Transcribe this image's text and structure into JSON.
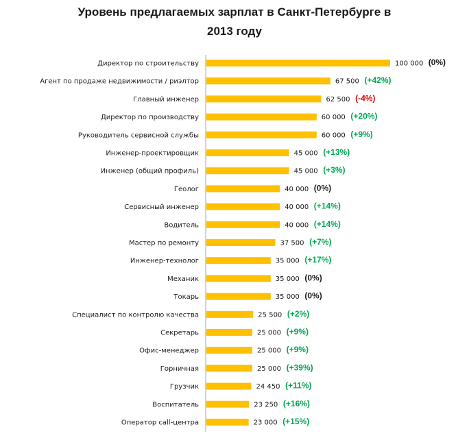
{
  "chart_data": {
    "type": "bar",
    "orientation": "horizontal",
    "title": [
      "Уровень предлагаемых зарплат в Санкт-Петербурге  в",
      "2013 году"
    ],
    "xlabel": "",
    "ylabel": "",
    "xlim": [
      0,
      100000
    ],
    "grid": false,
    "legend": "none",
    "colors": {
      "bar": "#FFC000",
      "axis": "#A6A6A6",
      "positive": "#00A651",
      "negative": "#E00000",
      "neutral": "#1a1a1a"
    },
    "categories": [
      "Директор по строительству",
      "Агент по продаже недвижимости / риэлтор",
      "Главный инженер",
      "Директор по производству",
      "Руководитель сервисной службы",
      "Инженер-проектировщик",
      "Инженер (общий профиль)",
      "Геолог",
      "Сервисный инженер",
      "Водитель",
      "Мастер по ремонту",
      "Инженер-технолог",
      "Механик",
      "Токарь",
      "Специалист по контролю качества",
      "Секретарь",
      "Офис-менеджер",
      "Горничная",
      "Грузчик",
      "Воспитатель",
      "Оператор call-центра"
    ],
    "values": [
      100000,
      67500,
      62500,
      60000,
      60000,
      45000,
      45000,
      40000,
      40000,
      40000,
      37500,
      35000,
      35000,
      35000,
      25500,
      25000,
      25000,
      25000,
      24450,
      23250,
      23000
    ],
    "value_labels": [
      "100 000",
      "67 500",
      "62 500",
      "60 000",
      "60 000",
      "45 000",
      "45 000",
      "40 000",
      "40 000",
      "40 000",
      "37 500",
      "35 000",
      "35 000",
      "35 000",
      "25 500",
      "25 000",
      "25 000",
      "25 000",
      "24 450",
      "23 250",
      "23 000"
    ],
    "changes": [
      "(0%)",
      "(+42%)",
      "(-4%)",
      "(+20%)",
      "(+9%)",
      "(+13%)",
      "(+3%)",
      "(0%)",
      "(+14%)",
      "(+14%)",
      "(+7%)",
      "(+17%)",
      "(0%)",
      "(0%)",
      "(+2%)",
      "(+9%)",
      "(+9%)",
      "(+39%)",
      "(+11%)",
      "(+16%)",
      "(+15%)"
    ],
    "change_values": [
      0,
      42,
      -4,
      20,
      9,
      13,
      3,
      0,
      14,
      14,
      7,
      17,
      0,
      0,
      2,
      9,
      9,
      39,
      11,
      16,
      15
    ]
  }
}
